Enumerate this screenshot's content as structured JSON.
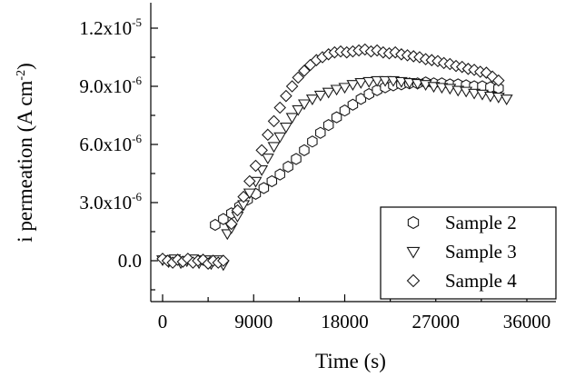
{
  "chart_data": {
    "type": "scatter",
    "xlabel": "Time (s)",
    "ylabel_main": "i permeation (A cm",
    "ylabel_sup": "-2",
    "ylabel_close": ")",
    "xlim": [
      -2000,
      38000
    ],
    "ylim": [
      -2e-06,
      1.3e-05
    ],
    "x_ticks": [
      0,
      9000,
      18000,
      27000,
      36000
    ],
    "x_tick_labels": [
      "0",
      "9000",
      "18000",
      "27000",
      "36000"
    ],
    "y_ticks": [
      0,
      3e-06,
      6e-06,
      9e-06,
      1.2e-05
    ],
    "y_tick_labels": [
      {
        "base": "0.0",
        "sup": ""
      },
      {
        "base": "3.0x10",
        "sup": "-6"
      },
      {
        "base": "6.0x10",
        "sup": "-6"
      },
      {
        "base": "9.0x10",
        "sup": "-6"
      },
      {
        "base": "1.2x10",
        "sup": "-5"
      }
    ],
    "legend_position": "bottom-right",
    "series": [
      {
        "name": "Sample 2",
        "marker": "hexagon",
        "x": [
          5200,
          6000,
          6800,
          7600,
          8400,
          9200,
          10000,
          10800,
          11600,
          12400,
          13200,
          14000,
          14800,
          15600,
          16400,
          17200,
          18000,
          18800,
          19600,
          20400,
          21200,
          22000,
          22800,
          23600,
          24400,
          25200,
          26000,
          26800,
          27600,
          28400,
          29200,
          30000,
          30800,
          31600,
          32400,
          33200
        ],
        "y": [
          1.85e-06,
          2.15e-06,
          2.45e-06,
          2.8e-06,
          3.15e-06,
          3.45e-06,
          3.75e-06,
          4.1e-06,
          4.45e-06,
          4.85e-06,
          5.25e-06,
          5.7e-06,
          6.15e-06,
          6.6e-06,
          7e-06,
          7.4e-06,
          7.75e-06,
          8.05e-06,
          8.35e-06,
          8.6e-06,
          8.8e-06,
          8.95e-06,
          9.05e-06,
          9.1e-06,
          9.15e-06,
          9.15e-06,
          9.2e-06,
          9.15e-06,
          9.15e-06,
          9.1e-06,
          9.1e-06,
          9.05e-06,
          9e-06,
          9e-06,
          8.95e-06,
          8.9e-06
        ]
      },
      {
        "name": "Sample 3",
        "marker": "triangle-down",
        "x": [
          0,
          600,
          1200,
          1800,
          2400,
          3000,
          3600,
          4200,
          4800,
          5400,
          6000,
          6400,
          6800,
          7400,
          8000,
          8600,
          9200,
          9800,
          10400,
          11000,
          11600,
          12200,
          12800,
          13400,
          14000,
          14800,
          15600,
          16400,
          17200,
          18000,
          18800,
          19600,
          20400,
          21200,
          22000,
          22800,
          23600,
          24400,
          25200,
          26000,
          26800,
          27600,
          28400,
          29200,
          30000,
          30800,
          31600,
          32400,
          33200,
          34000
        ],
        "y": [
          5e-08,
          -5e-08,
          1e-07,
          -1e-07,
          0.0,
          1e-07,
          -1e-07,
          5e-08,
          -1.5e-07,
          5e-08,
          -2e-07,
          1.4e-06,
          1.7e-06,
          2.3e-06,
          2.9e-06,
          3.5e-06,
          4.1e-06,
          4.7e-06,
          5.3e-06,
          5.9e-06,
          6.4e-06,
          6.9e-06,
          7.4e-06,
          7.8e-06,
          8.1e-06,
          8.35e-06,
          8.55e-06,
          8.7e-06,
          8.85e-06,
          8.95e-06,
          9.1e-06,
          9.2e-06,
          9.25e-06,
          9.3e-06,
          9.3e-06,
          9.3e-06,
          9.25e-06,
          9.2e-06,
          9.15e-06,
          9.1e-06,
          9e-06,
          8.95e-06,
          8.9e-06,
          8.8e-06,
          8.75e-06,
          8.65e-06,
          8.6e-06,
          8.5e-06,
          8.45e-06,
          8.35e-06
        ]
      },
      {
        "name": "Sample 4",
        "marker": "diamond",
        "x": [
          0,
          500,
          1000,
          1500,
          2000,
          2500,
          3000,
          3500,
          4000,
          4500,
          5000,
          5500,
          6000,
          6800,
          7400,
          8000,
          8600,
          9200,
          9800,
          10400,
          11000,
          11600,
          12200,
          12800,
          13400,
          14000,
          14600,
          15200,
          15800,
          16400,
          17000,
          17600,
          18200,
          18800,
          19400,
          20000,
          20600,
          21200,
          21800,
          22400,
          23000,
          23600,
          24200,
          24800,
          25400,
          26000,
          26600,
          27200,
          27800,
          28400,
          29000,
          29600,
          30200,
          30800,
          31400,
          32000,
          32600,
          33200
        ],
        "y": [
          1e-07,
          0.0,
          -1e-07,
          5e-08,
          -5e-08,
          1e-07,
          -1e-07,
          0.0,
          5e-08,
          -1.5e-07,
          0.0,
          -1e-07,
          0.0,
          1.9e-06,
          2.6e-06,
          3.3e-06,
          4.1e-06,
          4.9e-06,
          5.7e-06,
          6.5e-06,
          7.2e-06,
          7.9e-06,
          8.5e-06,
          9e-06,
          9.45e-06,
          9.8e-06,
          1.01e-05,
          1.035e-05,
          1.05e-05,
          1.065e-05,
          1.075e-05,
          1.08e-05,
          1.075e-05,
          1.08e-05,
          1.085e-05,
          1.09e-05,
          1.08e-05,
          1.085e-05,
          1.075e-05,
          1.07e-05,
          1.075e-05,
          1.065e-05,
          1.06e-05,
          1.055e-05,
          1.05e-05,
          1.04e-05,
          1.035e-05,
          1.03e-05,
          1.02e-05,
          1.015e-05,
          1.005e-05,
          1e-05,
          9.9e-06,
          9.85e-06,
          9.75e-06,
          9.7e-06,
          9.5e-06,
          9.3e-06
        ]
      }
    ]
  }
}
